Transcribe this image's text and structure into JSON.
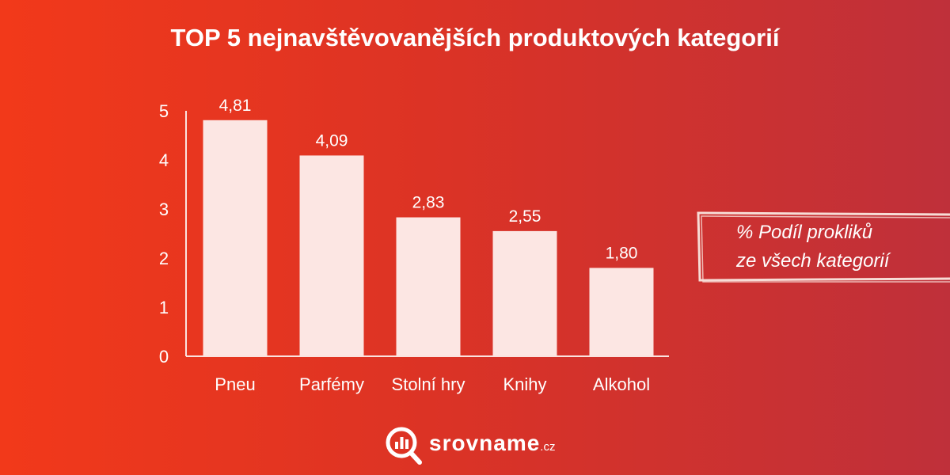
{
  "chart_data": {
    "type": "bar",
    "title": "TOP 5 nejnavštěvovanějších produktových kategorií",
    "categories": [
      "Pneu",
      "Parfémy",
      "Stolní hry",
      "Knihy",
      "Alkohol"
    ],
    "values": [
      4.81,
      4.09,
      2.83,
      2.55,
      1.8
    ],
    "value_labels": [
      "4,81",
      "4,09",
      "2,83",
      "2,55",
      "1,80"
    ],
    "yticks": [
      0,
      1,
      2,
      3,
      4,
      5
    ],
    "ylim": [
      0,
      5
    ],
    "xlabel": "",
    "ylabel": "",
    "legend": {
      "lines": [
        "% Podíl prokliků",
        "ze všech kategorií"
      ],
      "placement": "right"
    },
    "grid": false,
    "colors": {
      "bar": "#fce6e3",
      "axis": "#fbe3df",
      "text": "#ffffff"
    }
  },
  "brand": {
    "name": "srovname",
    "tld": ".cz",
    "icon": "magnifier-bar-chart-icon"
  }
}
